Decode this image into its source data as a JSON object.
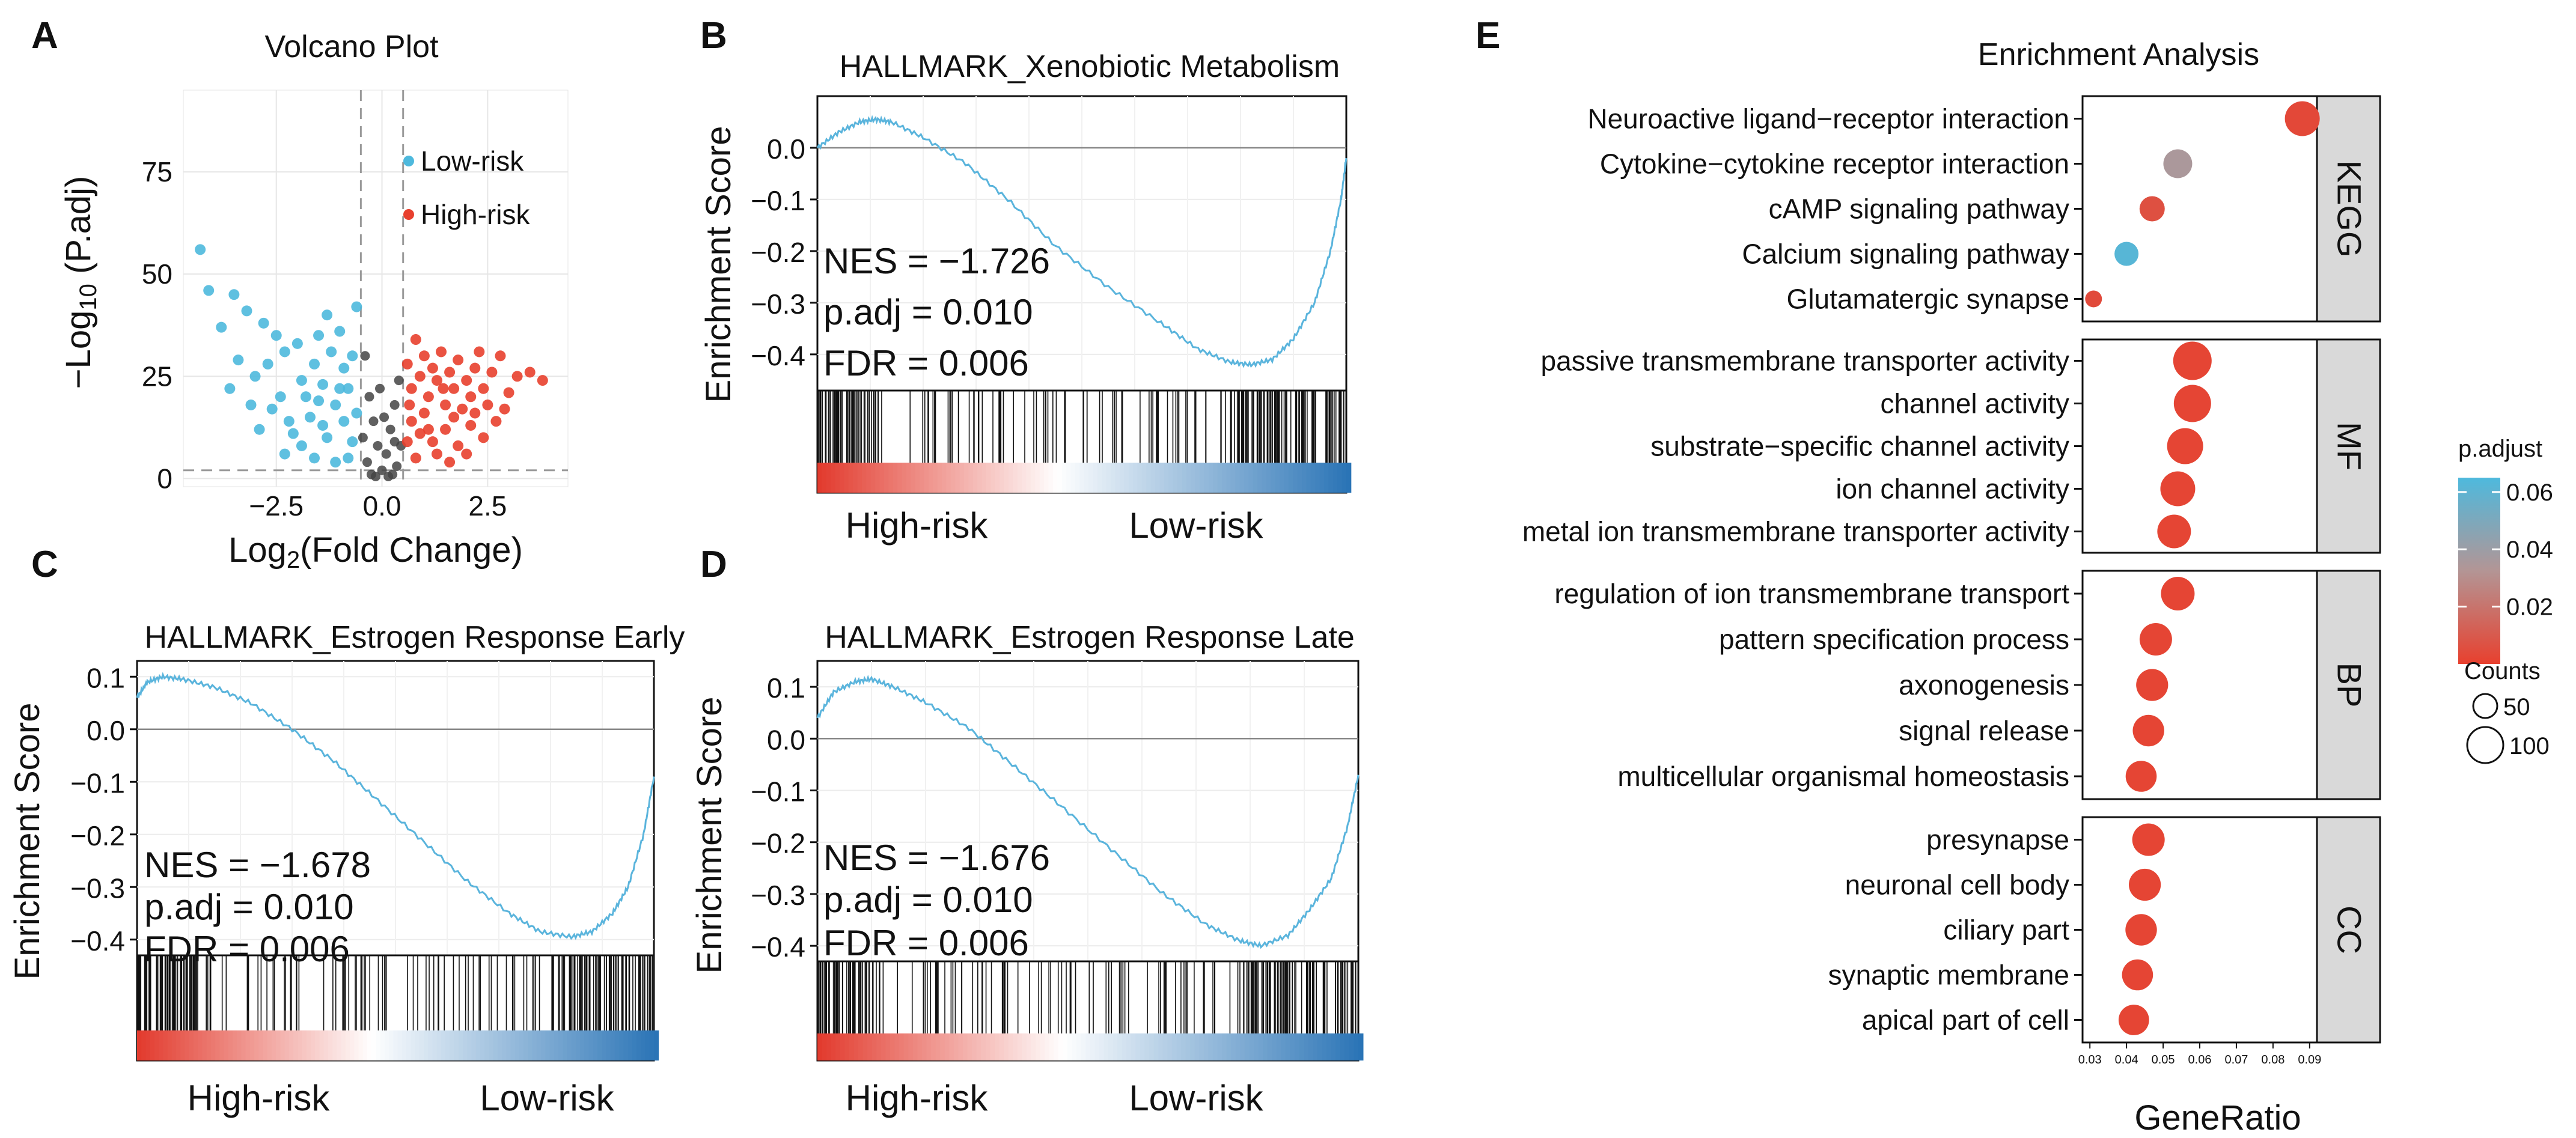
{
  "colors": {
    "high": "#e8402e",
    "low": "#4eb9dd",
    "neutral": "#444444",
    "curve": "#5ab4dc",
    "grid": "#e6e6e6",
    "strip": "#d9d9d9",
    "rank_red": "#e23b2e",
    "rank_blue": "#2a74b6"
  },
  "panels": {
    "A": {
      "label": "A",
      "title": "Volcano Plot"
    },
    "B": {
      "label": "B",
      "title": "HALLMARK_Xenobiotic Metabolism"
    },
    "C": {
      "label": "C",
      "title": "HALLMARK_Estrogen Response Early"
    },
    "D": {
      "label": "D",
      "title": "HALLMARK_Estrogen Response Late"
    },
    "E": {
      "label": "E",
      "title": "Enrichment Analysis"
    }
  },
  "chart_data": [
    {
      "id": "A",
      "type": "scatter",
      "title": "Volcano Plot",
      "xlabel_base": "Log",
      "xlabel_sub": "2",
      "xlabel_rest": "(Fold Change)",
      "ylabel_base": "−Log",
      "ylabel_sub": "10",
      "ylabel_rest": " (P.adj)",
      "xlim": [
        -4.7,
        4.4
      ],
      "ylim": [
        -2,
        95
      ],
      "xticks": [
        -2.5,
        0.0,
        2.5
      ],
      "xtick_labels": [
        "−2.5",
        "0.0",
        "2.5"
      ],
      "yticks": [
        0,
        25,
        50,
        75
      ],
      "ytick_labels": [
        "0",
        "25",
        "50",
        "75"
      ],
      "fc_threshold": 0.5,
      "p_threshold": 2,
      "legend": [
        {
          "name": "Low-risk",
          "color": "#4eb9dd"
        },
        {
          "name": "High-risk",
          "color": "#e8402e"
        }
      ],
      "points": [
        [
          -4.3,
          56
        ],
        [
          -4.1,
          46
        ],
        [
          -3.8,
          37
        ],
        [
          -3.5,
          45
        ],
        [
          -3.2,
          41
        ],
        [
          -3.4,
          29
        ],
        [
          -2.8,
          38
        ],
        [
          -2.5,
          35
        ],
        [
          -3.0,
          25
        ],
        [
          -2.7,
          28
        ],
        [
          -2.3,
          31
        ],
        [
          -2.0,
          33
        ],
        [
          -1.9,
          24
        ],
        [
          -2.4,
          20
        ],
        [
          -1.6,
          28
        ],
        [
          -1.5,
          35
        ],
        [
          -1.3,
          40
        ],
        [
          -1.2,
          31
        ],
        [
          -1.0,
          36
        ],
        [
          -0.9,
          27
        ],
        [
          -0.8,
          22
        ],
        [
          -1.1,
          18
        ],
        [
          -1.7,
          15
        ],
        [
          -2.2,
          14
        ],
        [
          -2.9,
          12
        ],
        [
          -3.1,
          18
        ],
        [
          -0.7,
          30
        ],
        [
          -0.6,
          42
        ],
        [
          -1.4,
          23
        ],
        [
          -1.8,
          20
        ],
        [
          -2.6,
          17
        ],
        [
          -3.6,
          22
        ],
        [
          -0.9,
          14
        ],
        [
          -1.3,
          10
        ],
        [
          -0.7,
          9
        ],
        [
          -1.9,
          8
        ],
        [
          -2.3,
          6
        ],
        [
          -1.6,
          5
        ],
        [
          -0.8,
          5
        ],
        [
          -1.1,
          4
        ],
        [
          -2.1,
          11
        ],
        [
          -1.4,
          13
        ],
        [
          -0.6,
          16
        ],
        [
          -1.0,
          22
        ],
        [
          -1.5,
          19
        ],
        [
          0.6,
          28
        ],
        [
          0.7,
          22
        ],
        [
          0.8,
          34
        ],
        [
          0.9,
          25
        ],
        [
          1.0,
          30
        ],
        [
          1.1,
          20
        ],
        [
          1.2,
          27
        ],
        [
          1.3,
          24
        ],
        [
          1.4,
          31
        ],
        [
          1.5,
          18
        ],
        [
          1.6,
          26
        ],
        [
          1.7,
          22
        ],
        [
          1.8,
          29
        ],
        [
          1.9,
          17
        ],
        [
          2.0,
          24
        ],
        [
          2.1,
          20
        ],
        [
          2.2,
          27
        ],
        [
          2.3,
          31
        ],
        [
          2.4,
          22
        ],
        [
          2.5,
          18
        ],
        [
          2.6,
          26
        ],
        [
          2.8,
          30
        ],
        [
          3.0,
          21
        ],
        [
          3.2,
          25
        ],
        [
          3.5,
          26
        ],
        [
          3.8,
          24
        ],
        [
          0.7,
          14
        ],
        [
          0.9,
          11
        ],
        [
          1.2,
          9
        ],
        [
          1.5,
          12
        ],
        [
          1.8,
          8
        ],
        [
          2.1,
          13
        ],
        [
          2.4,
          10
        ],
        [
          1.0,
          16
        ],
        [
          1.3,
          6
        ],
        [
          0.8,
          5
        ],
        [
          1.6,
          4
        ],
        [
          2.0,
          6
        ],
        [
          2.7,
          14
        ],
        [
          0.6,
          9
        ],
        [
          1.1,
          12
        ],
        [
          1.7,
          15
        ],
        [
          2.2,
          16
        ],
        [
          2.9,
          17
        ],
        [
          0.65,
          18
        ],
        [
          1.45,
          22
        ]
      ],
      "neutral_points": [
        [
          -0.4,
          30
        ],
        [
          -0.3,
          20
        ],
        [
          -0.2,
          14
        ],
        [
          0.2,
          12
        ],
        [
          0.3,
          18
        ],
        [
          0.4,
          24
        ],
        [
          -0.1,
          8
        ],
        [
          0.1,
          6
        ],
        [
          -0.35,
          4
        ],
        [
          0.35,
          3
        ],
        [
          0.0,
          2
        ],
        [
          -0.25,
          1
        ],
        [
          0.25,
          1
        ],
        [
          -0.15,
          0.5
        ],
        [
          0.15,
          0.5
        ],
        [
          -0.45,
          10
        ],
        [
          0.45,
          8
        ],
        [
          0.05,
          15
        ],
        [
          -0.05,
          22
        ],
        [
          0.3,
          9
        ]
      ]
    },
    {
      "id": "B",
      "type": "line",
      "title": "HALLMARK_Xenobiotic Metabolism",
      "ylabel": "Enrichment Score",
      "ylim": [
        -0.47,
        0.1
      ],
      "yticks": [
        0.0,
        -0.1,
        -0.2,
        -0.3,
        -0.4
      ],
      "ytick_labels": [
        "0.0",
        "−0.1",
        "−0.2",
        "−0.3",
        "−0.4"
      ],
      "stats": [
        "NES = −1.726",
        "p.adj = 0.010",
        "FDR = 0.006"
      ],
      "rank_labels": [
        "High-risk",
        "Low-risk"
      ],
      "curve": [
        [
          0,
          0.0
        ],
        [
          0.04,
          0.03
        ],
        [
          0.08,
          0.05
        ],
        [
          0.11,
          0.055
        ],
        [
          0.14,
          0.05
        ],
        [
          0.2,
          0.02
        ],
        [
          0.28,
          -0.03
        ],
        [
          0.36,
          -0.1
        ],
        [
          0.45,
          -0.19
        ],
        [
          0.55,
          -0.27
        ],
        [
          0.65,
          -0.34
        ],
        [
          0.72,
          -0.39
        ],
        [
          0.78,
          -0.415
        ],
        [
          0.82,
          -0.42
        ],
        [
          0.86,
          -0.41
        ],
        [
          0.9,
          -0.37
        ],
        [
          0.94,
          -0.3
        ],
        [
          0.97,
          -0.2
        ],
        [
          0.99,
          -0.1
        ],
        [
          1.0,
          -0.02
        ]
      ]
    },
    {
      "id": "C",
      "type": "line",
      "title": "HALLMARK_Estrogen Response Early",
      "ylabel": "Enrichment Score",
      "ylim": [
        -0.43,
        0.13
      ],
      "yticks": [
        0.1,
        0.0,
        -0.1,
        -0.2,
        -0.3,
        -0.4
      ],
      "ytick_labels": [
        "0.1",
        "0.0",
        "−0.1",
        "−0.2",
        "−0.3",
        "−0.4"
      ],
      "stats": [
        "NES = −1.678",
        "p.adj = 0.010",
        "FDR = 0.006"
      ],
      "rank_labels": [
        "High-risk",
        "Low-risk"
      ],
      "curve": [
        [
          0,
          0.06
        ],
        [
          0.02,
          0.09
        ],
        [
          0.05,
          0.1
        ],
        [
          0.09,
          0.095
        ],
        [
          0.15,
          0.08
        ],
        [
          0.22,
          0.05
        ],
        [
          0.3,
          0.0
        ],
        [
          0.38,
          -0.06
        ],
        [
          0.46,
          -0.13
        ],
        [
          0.55,
          -0.21
        ],
        [
          0.64,
          -0.29
        ],
        [
          0.72,
          -0.35
        ],
        [
          0.78,
          -0.385
        ],
        [
          0.84,
          -0.395
        ],
        [
          0.88,
          -0.385
        ],
        [
          0.92,
          -0.35
        ],
        [
          0.95,
          -0.3
        ],
        [
          0.98,
          -0.2
        ],
        [
          1.0,
          -0.09
        ]
      ]
    },
    {
      "id": "D",
      "type": "line",
      "title": "HALLMARK_Estrogen Response Late",
      "ylabel": "Enrichment Score",
      "ylim": [
        -0.43,
        0.15
      ],
      "yticks": [
        0.1,
        0.0,
        -0.1,
        -0.2,
        -0.3,
        -0.4
      ],
      "ytick_labels": [
        "0.1",
        "0.0",
        "−0.1",
        "−0.2",
        "−0.3",
        "−0.4"
      ],
      "stats": [
        "NES = −1.676",
        "p.adj = 0.010",
        "FDR = 0.006"
      ],
      "rank_labels": [
        "High-risk",
        "Low-risk"
      ],
      "curve": [
        [
          0,
          0.04
        ],
        [
          0.03,
          0.09
        ],
        [
          0.07,
          0.11
        ],
        [
          0.1,
          0.115
        ],
        [
          0.14,
          0.1
        ],
        [
          0.2,
          0.07
        ],
        [
          0.28,
          0.02
        ],
        [
          0.36,
          -0.05
        ],
        [
          0.45,
          -0.13
        ],
        [
          0.55,
          -0.22
        ],
        [
          0.64,
          -0.3
        ],
        [
          0.72,
          -0.36
        ],
        [
          0.78,
          -0.39
        ],
        [
          0.82,
          -0.4
        ],
        [
          0.87,
          -0.38
        ],
        [
          0.91,
          -0.33
        ],
        [
          0.95,
          -0.27
        ],
        [
          0.98,
          -0.17
        ],
        [
          1.0,
          -0.07
        ]
      ]
    },
    {
      "id": "E",
      "type": "scatter",
      "title": "Enrichment Analysis",
      "xlabel": "GeneRatio",
      "xlim": [
        0.028,
        0.092
      ],
      "xticks": [
        0.03,
        0.04,
        0.05,
        0.06,
        0.07,
        0.08,
        0.09
      ],
      "xtick_labels": [
        "0.03",
        "0.04",
        "0.05",
        "0.06",
        "0.07",
        "0.08",
        "0.09"
      ],
      "groups": [
        {
          "name": "KEGG",
          "terms": [
            {
              "term": "Neuroactive ligand−receptor interaction",
              "ratio": 0.088,
              "padj": 0.003,
              "count": 120
            },
            {
              "term": "Cytokine−cytokine receptor interaction",
              "ratio": 0.054,
              "padj": 0.035,
              "count": 95
            },
            {
              "term": "cAMP signaling pathway",
              "ratio": 0.047,
              "padj": 0.006,
              "count": 80
            },
            {
              "term": "Calcium signaling pathway",
              "ratio": 0.04,
              "padj": 0.062,
              "count": 75
            },
            {
              "term": "Glutamatergic synapse",
              "ratio": 0.031,
              "padj": 0.004,
              "count": 45
            }
          ]
        },
        {
          "name": "MF",
          "terms": [
            {
              "term": "passive transmembrane transporter activity",
              "ratio": 0.058,
              "padj": 0.002,
              "count": 135
            },
            {
              "term": "channel activity",
              "ratio": 0.058,
              "padj": 0.002,
              "count": 130
            },
            {
              "term": "substrate−specific channel activity",
              "ratio": 0.056,
              "padj": 0.002,
              "count": 125
            },
            {
              "term": "ion channel activity",
              "ratio": 0.054,
              "padj": 0.002,
              "count": 120
            },
            {
              "term": "metal ion transmembrane transporter activity",
              "ratio": 0.053,
              "padj": 0.002,
              "count": 115
            }
          ]
        },
        {
          "name": "BP",
          "terms": [
            {
              "term": "regulation of ion transmembrane transport",
              "ratio": 0.054,
              "padj": 0.002,
              "count": 115
            },
            {
              "term": "pattern specification process",
              "ratio": 0.048,
              "padj": 0.002,
              "count": 110
            },
            {
              "term": "axonogenesis",
              "ratio": 0.047,
              "padj": 0.002,
              "count": 108
            },
            {
              "term": "signal release",
              "ratio": 0.046,
              "padj": 0.002,
              "count": 106
            },
            {
              "term": "multicellular organismal homeostasis",
              "ratio": 0.044,
              "padj": 0.002,
              "count": 104
            }
          ]
        },
        {
          "name": "CC",
          "terms": [
            {
              "term": "presynapse",
              "ratio": 0.046,
              "padj": 0.002,
              "count": 110
            },
            {
              "term": "neuronal cell body",
              "ratio": 0.045,
              "padj": 0.002,
              "count": 108
            },
            {
              "term": "ciliary part",
              "ratio": 0.044,
              "padj": 0.002,
              "count": 106
            },
            {
              "term": "synaptic membrane",
              "ratio": 0.043,
              "padj": 0.002,
              "count": 104
            },
            {
              "term": "apical part of cell",
              "ratio": 0.042,
              "padj": 0.002,
              "count": 102
            }
          ]
        }
      ],
      "legend_padj": {
        "title": "p.adjust",
        "ticks": [
          0.06,
          0.04,
          0.02
        ],
        "tick_labels": [
          "0.06",
          "0.04",
          "0.02"
        ],
        "range": [
          0.0,
          0.065
        ]
      },
      "legend_counts": {
        "title": "Counts",
        "values": [
          50,
          100
        ],
        "labels": [
          "50",
          "100"
        ]
      }
    }
  ]
}
